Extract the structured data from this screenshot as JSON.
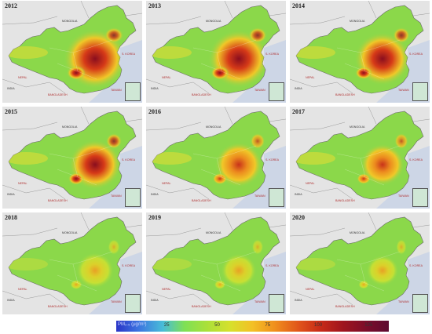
{
  "panels": [
    {
      "year": "2012",
      "level": 1.0
    },
    {
      "year": "2013",
      "level": 0.95
    },
    {
      "year": "2014",
      "level": 0.8
    },
    {
      "year": "2015",
      "level": 0.7
    },
    {
      "year": "2016",
      "level": 0.55
    },
    {
      "year": "2017",
      "level": 0.45
    },
    {
      "year": "2018",
      "level": 0.28
    },
    {
      "year": "2019",
      "level": 0.22
    },
    {
      "year": "2020",
      "level": 0.12
    }
  ],
  "map_labels": {
    "mongolia": "MONGOLIA",
    "nepal": "NEPAL",
    "india": "INDIA",
    "bangladesh": "BANGLADESH",
    "s_korea": "S. KOREA",
    "taiwan": "TAIWAN"
  },
  "legend": {
    "title": "PM₂.₅ (μg/m³)",
    "ticks": [
      {
        "label": "25",
        "value": 25
      },
      {
        "label": "50",
        "value": 50
      },
      {
        "label": "75",
        "value": 75
      },
      {
        "label": "100",
        "value": 100
      },
      {
        "label": "125",
        "value": 125
      }
    ],
    "range": [
      0,
      135
    ]
  },
  "colors": {
    "sea": "#d8dde6",
    "land_outside": "#e4e4e4",
    "low": "#8bd84a",
    "high": "#b0101a"
  }
}
